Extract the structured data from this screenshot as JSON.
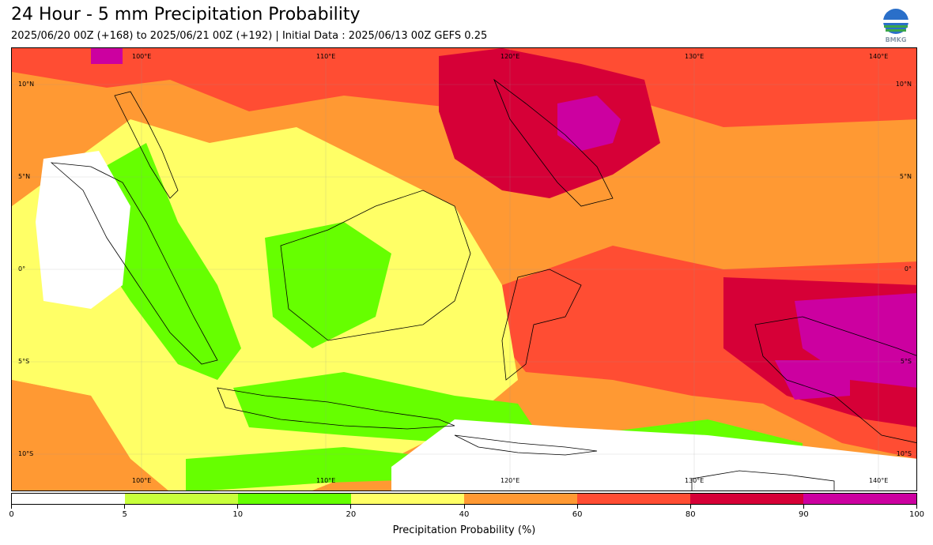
{
  "title": "24 Hour - 5 mm Precipitation Probability",
  "subtitle": "2025/06/20 00Z (+168) to 2025/06/21 00Z (+192) | Initial Data : 2025/06/13 00Z GEFS 0.25",
  "logo_text": "BMKG",
  "map": {
    "lon_labels": [
      "100°E",
      "110°E",
      "120°E",
      "130°E",
      "140°E"
    ],
    "lat_labels": [
      "10°N",
      "5°N",
      "0°",
      "5°S",
      "10°S"
    ],
    "background_color": "#ff9933"
  },
  "colorbar": {
    "ticks": [
      "0",
      "5",
      "10",
      "20",
      "40",
      "60",
      "80",
      "90",
      "100"
    ],
    "colors": [
      "#ffffff",
      "#c8ff3c",
      "#66ff00",
      "#ffff66",
      "#ff9933",
      "#ff4d33",
      "#d60037",
      "#cc00a0"
    ],
    "label": "Precipitation Probability (%)"
  }
}
